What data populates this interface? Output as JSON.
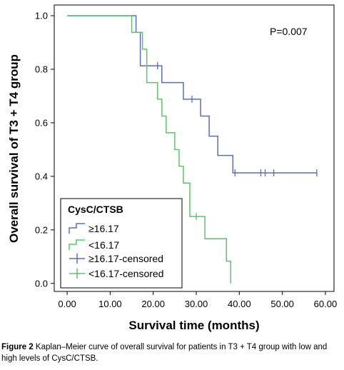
{
  "chart_data": {
    "type": "line",
    "subtype": "kaplan-meier step",
    "xlabel": "Survival time (months)",
    "ylabel": "Overall survival of T3 + T4 group",
    "xlim": [
      -3,
      62
    ],
    "ylim": [
      -0.03,
      1.04
    ],
    "xticks": [
      0,
      10,
      20,
      30,
      40,
      50,
      60
    ],
    "xtick_labels": [
      "0.00",
      "10.00",
      "20.00",
      "30.00",
      "40.00",
      "50.00",
      "60.00"
    ],
    "yticks": [
      0,
      0.2,
      0.4,
      0.6,
      0.8,
      1.0
    ],
    "ytick_labels": [
      "0.0",
      "0.2",
      "0.4",
      "0.6",
      "0.8",
      "1.0"
    ],
    "annotation": "P=0.007",
    "legend": {
      "title": "CysC/CTSB",
      "placement": "bottom-left",
      "entries": [
        "≥16.17",
        "<16.17",
        "≥16.17-censored",
        "<16.17-censored"
      ]
    },
    "series": [
      {
        "name": "≥16.17",
        "color": "#5a6fb5",
        "steps": [
          [
            0,
            1.0
          ],
          [
            16,
            1.0
          ],
          [
            16,
            0.938
          ],
          [
            17,
            0.938
          ],
          [
            17,
            0.813
          ],
          [
            22,
            0.813
          ],
          [
            22,
            0.75
          ],
          [
            27,
            0.75
          ],
          [
            27,
            0.688
          ],
          [
            31,
            0.688
          ],
          [
            31,
            0.625
          ],
          [
            33,
            0.625
          ],
          [
            33,
            0.55
          ],
          [
            35,
            0.55
          ],
          [
            35,
            0.478
          ],
          [
            38.5,
            0.478
          ],
          [
            38.5,
            0.413
          ],
          [
            58,
            0.413
          ]
        ],
        "censored": [
          [
            21,
            0.813
          ],
          [
            29,
            0.688
          ],
          [
            39,
            0.413
          ],
          [
            45,
            0.413
          ],
          [
            46,
            0.413
          ],
          [
            48,
            0.413
          ],
          [
            58,
            0.413
          ]
        ]
      },
      {
        "name": "<16.17",
        "color": "#5fc36b",
        "steps": [
          [
            0,
            1.0
          ],
          [
            15,
            1.0
          ],
          [
            15,
            0.938
          ],
          [
            17.5,
            0.938
          ],
          [
            17.5,
            0.875
          ],
          [
            18.5,
            0.875
          ],
          [
            18.5,
            0.75
          ],
          [
            21,
            0.75
          ],
          [
            21,
            0.688
          ],
          [
            22,
            0.688
          ],
          [
            22,
            0.625
          ],
          [
            23,
            0.625
          ],
          [
            23,
            0.563
          ],
          [
            25,
            0.563
          ],
          [
            25,
            0.5
          ],
          [
            26,
            0.5
          ],
          [
            26,
            0.438
          ],
          [
            27,
            0.438
          ],
          [
            27,
            0.375
          ],
          [
            28.5,
            0.375
          ],
          [
            28.5,
            0.25
          ],
          [
            32,
            0.25
          ],
          [
            32,
            0.167
          ],
          [
            37,
            0.167
          ],
          [
            37,
            0.083
          ],
          [
            38,
            0.083
          ],
          [
            38,
            0.0
          ]
        ],
        "censored": [
          [
            30,
            0.25
          ]
        ]
      }
    ]
  },
  "caption": {
    "label": "Figure 2",
    "text": " Kaplan–Meier curve of overall survival for patients in T3 + T4 group with low and high levels of CysC/CTSB."
  }
}
